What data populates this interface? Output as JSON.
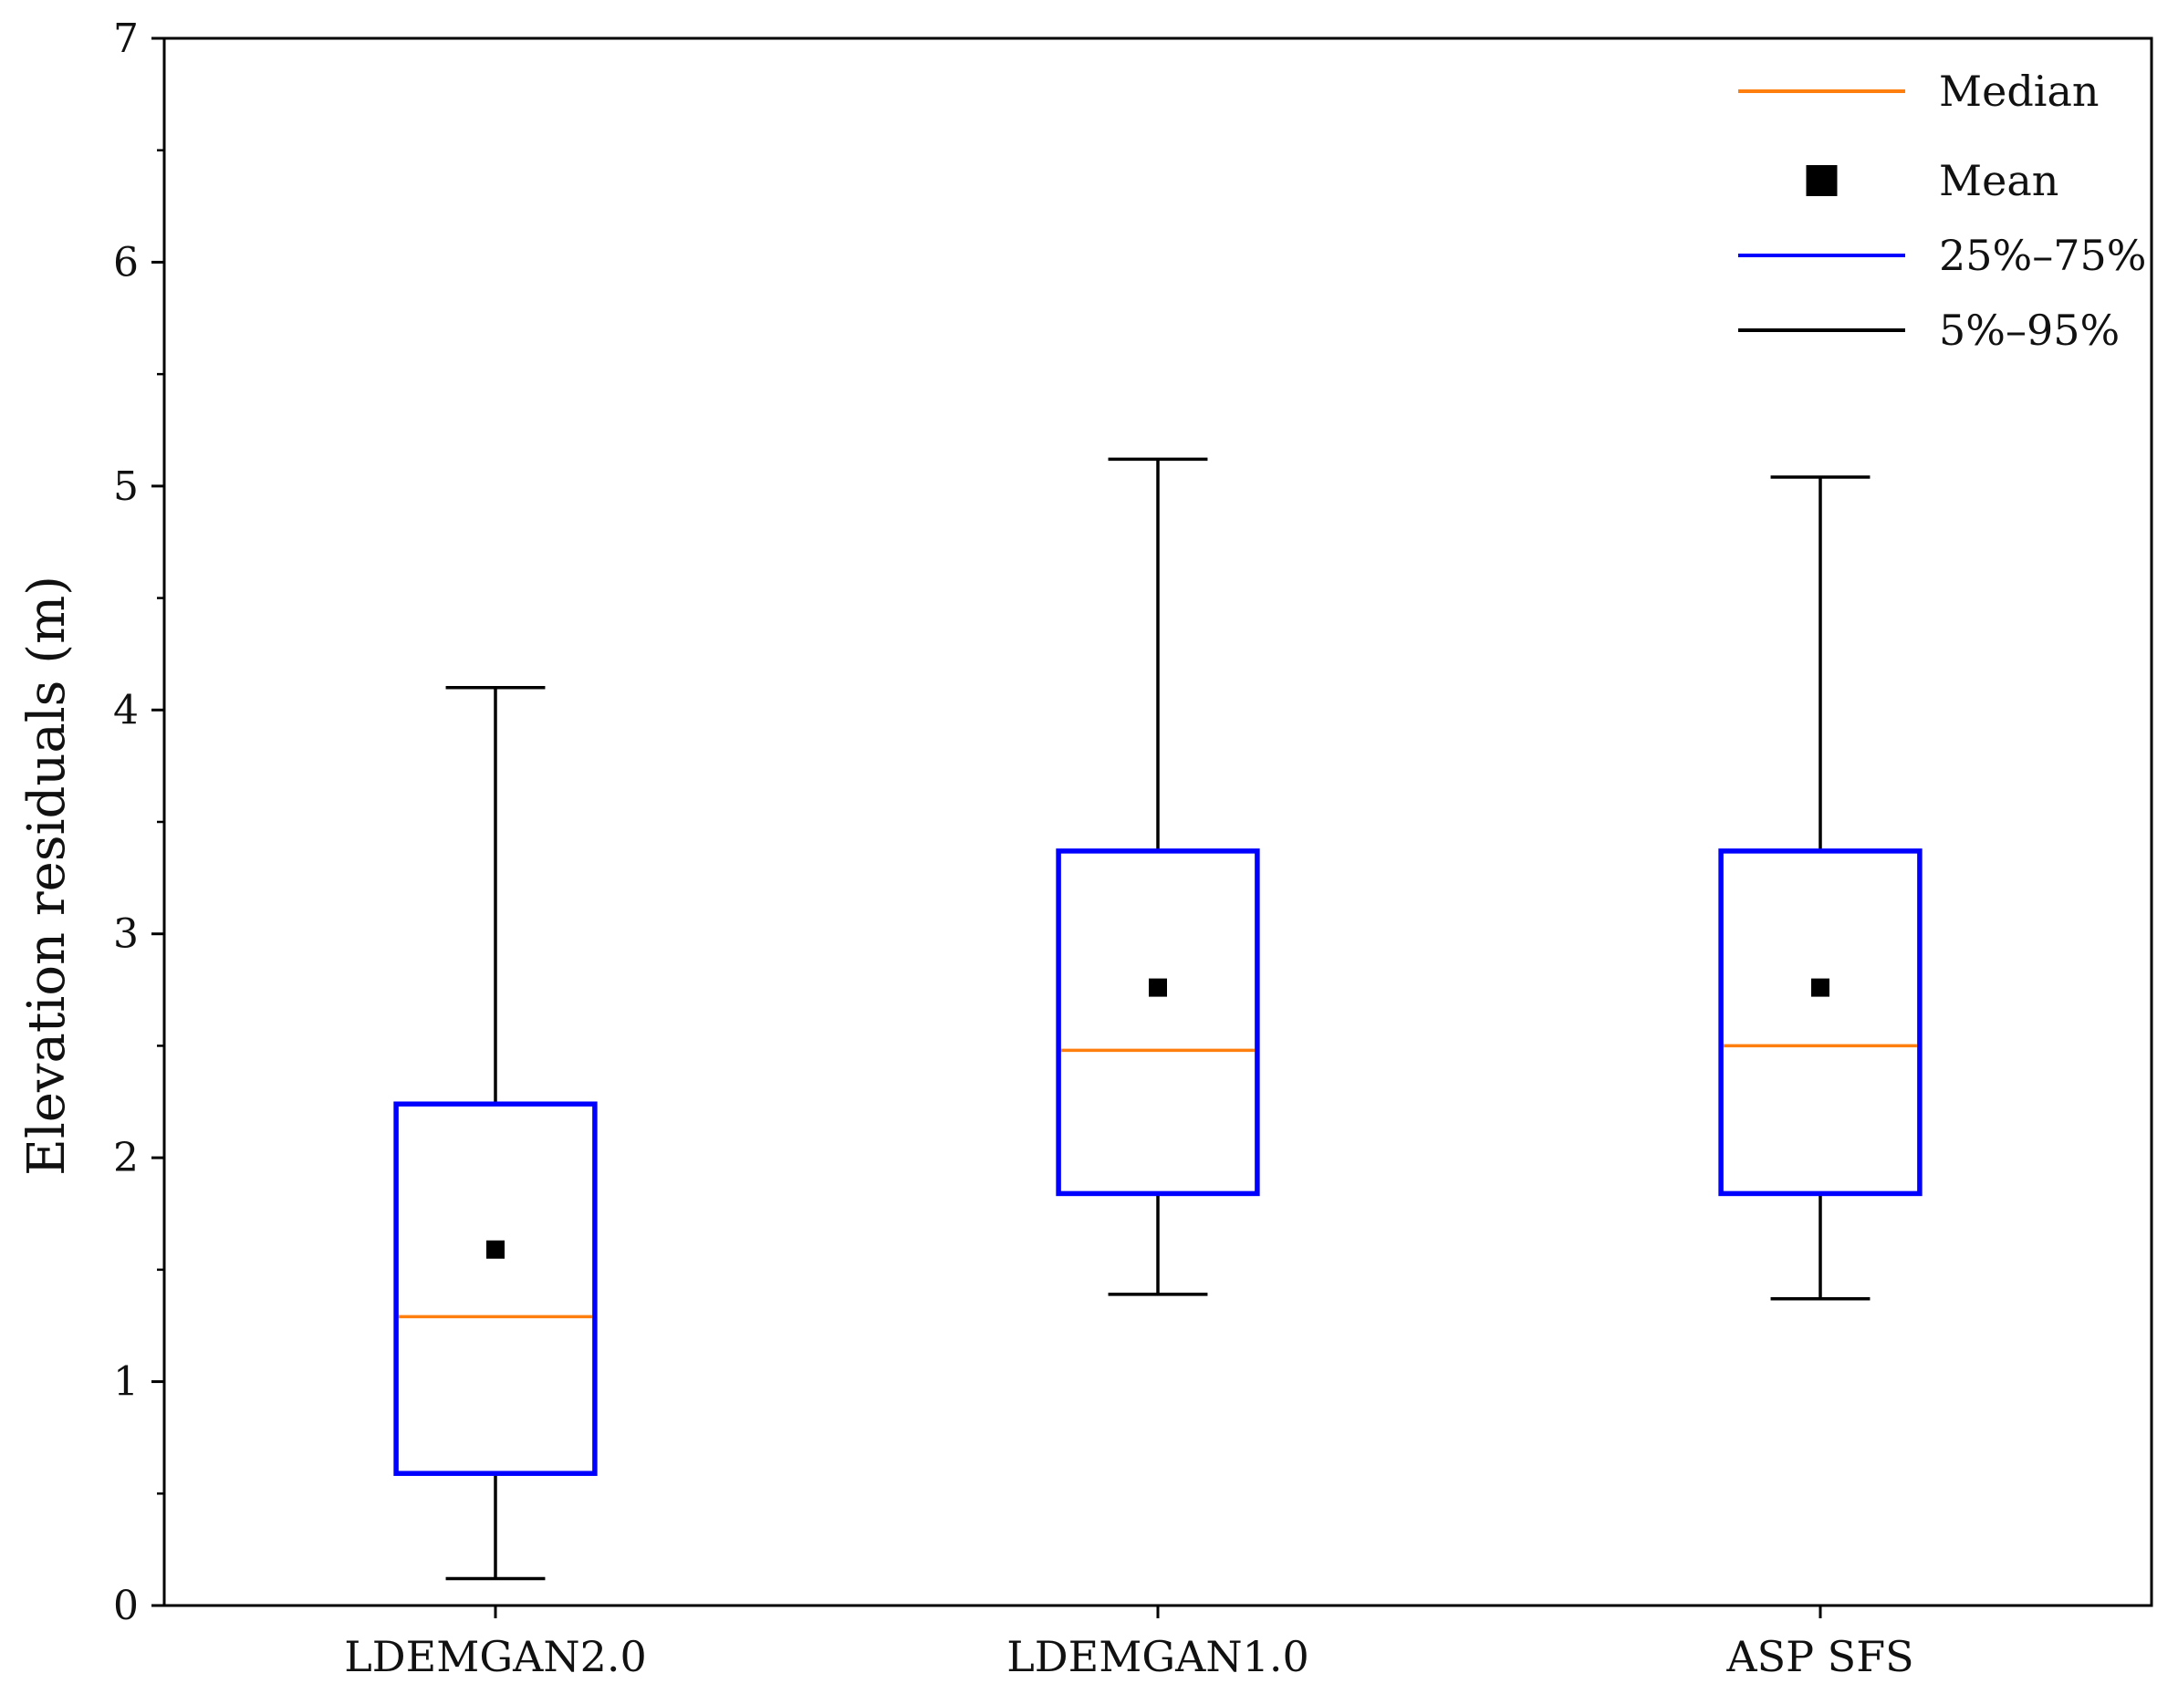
{
  "chart_data": {
    "type": "box",
    "title": "",
    "xlabel": "",
    "ylabel": "Elevation  residuals  (m)",
    "ylim": [
      0,
      7
    ],
    "yticks": [
      0,
      1,
      2,
      3,
      4,
      5,
      6,
      7
    ],
    "y_minor_step": 0.5,
    "grid": false,
    "legend_position": "top-right",
    "categories": [
      "LDEMGAN2.0",
      "LDEMGAN1.0",
      "ASP SFS"
    ],
    "boxes": [
      {
        "category": "LDEMGAN2.0",
        "whisker_low": 0.12,
        "q1": 0.59,
        "median": 1.29,
        "q3": 2.24,
        "whisker_high": 4.1,
        "mean": 1.59
      },
      {
        "category": "LDEMGAN1.0",
        "whisker_low": 1.39,
        "q1": 1.84,
        "median": 2.48,
        "q3": 3.37,
        "whisker_high": 5.12,
        "mean": 2.76
      },
      {
        "category": "ASP SFS",
        "whisker_low": 1.37,
        "q1": 1.84,
        "median": 2.5,
        "q3": 3.37,
        "whisker_high": 5.04,
        "mean": 2.76
      }
    ],
    "legend": [
      {
        "key": "median",
        "label": "Median",
        "marker": "line",
        "color": "#ff7f0e"
      },
      {
        "key": "mean",
        "label": "Mean",
        "marker": "square",
        "color": "#000000"
      },
      {
        "key": "box",
        "label": "25%–75%",
        "marker": "line",
        "color": "#0000ff"
      },
      {
        "key": "whisker",
        "label": "5%–95%",
        "marker": "line",
        "color": "#000000"
      }
    ],
    "colors": {
      "median": "#ff7f0e",
      "mean": "#000000",
      "box": "#0000ff",
      "whisker": "#000000",
      "axis": "#000000"
    }
  }
}
